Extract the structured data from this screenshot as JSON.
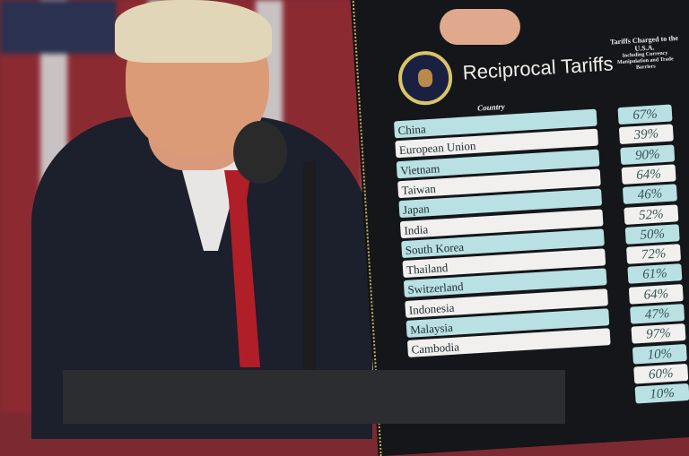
{
  "board": {
    "title": "Reciprocal Tariffs",
    "column_country": "Country",
    "column_charged": "Tariffs Charged to the U.S.A.",
    "column_charged_note": "Including Currency Manipulation and Trade Barriers",
    "rows": [
      {
        "country": "China",
        "charged": "67%"
      },
      {
        "country": "European Union",
        "charged": "39%"
      },
      {
        "country": "Vietnam",
        "charged": "90%"
      },
      {
        "country": "Taiwan",
        "charged": "64%"
      },
      {
        "country": "Japan",
        "charged": "46%"
      },
      {
        "country": "India",
        "charged": "52%"
      },
      {
        "country": "South Korea",
        "charged": "50%"
      },
      {
        "country": "Thailand",
        "charged": "72%"
      },
      {
        "country": "Switzerland",
        "charged": "61%"
      },
      {
        "country": "Indonesia",
        "charged": "64%"
      },
      {
        "country": "Malaysia",
        "charged": "47%"
      },
      {
        "country": "Cambodia",
        "charged": "97%"
      },
      {
        "country": "",
        "charged": "10%"
      },
      {
        "country": "",
        "charged": "60%"
      },
      {
        "country": "",
        "charged": "10%"
      }
    ]
  },
  "colors": {
    "row_light_blue": "#b9e0e2",
    "row_white": "#f1f0ee",
    "column_yellow": "#e7c65b",
    "tie_red": "#b01e28"
  }
}
